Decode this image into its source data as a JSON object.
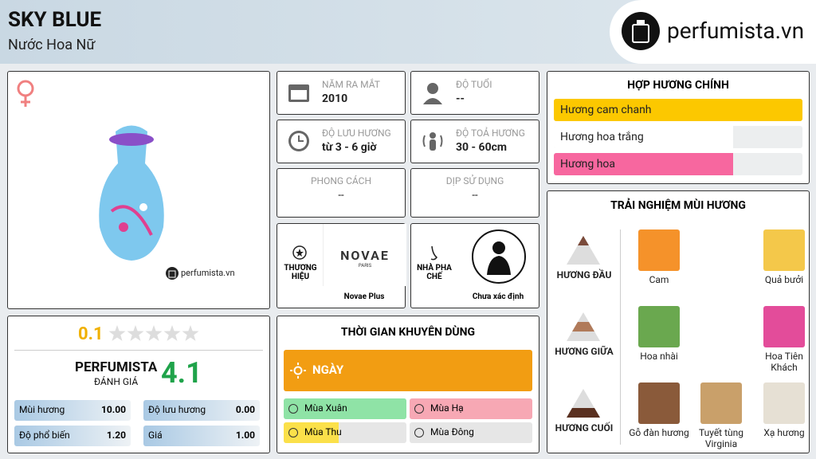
{
  "header": {
    "title": "SKY BLUE",
    "subtitle": "Nước Hoa Nữ",
    "brand": "perfumista.vn"
  },
  "product": {
    "watermark": "perfumista.vn"
  },
  "info": [
    {
      "label": "NĂM RA MẮT",
      "value": "2010"
    },
    {
      "label": "ĐỘ TUỔI",
      "value": "--"
    },
    {
      "label": "ĐỘ LƯU HƯƠNG",
      "value": "từ 3 - 6 giờ"
    },
    {
      "label": "ĐỘ TOẢ HƯƠNG",
      "value": "30 - 60cm"
    },
    {
      "label": "PHONG CÁCH",
      "value": "--"
    },
    {
      "label": "DỊP SỬ DỤNG",
      "value": "--"
    }
  ],
  "brand_box": {
    "label": "THƯƠNG HIỆU",
    "logo": "NOVAE",
    "logo_sub": "PARIS",
    "name": "Novae Plus"
  },
  "perfumer": {
    "label": "NHÀ PHA CHẾ",
    "name": "Chưa xác định"
  },
  "rating": {
    "user_score": "0.1",
    "label": "PERFUMISTA",
    "sublabel": "ĐÁNH GIÁ",
    "score": "4.1",
    "stats": [
      {
        "label": "Mùi hương",
        "value": "10.00"
      },
      {
        "label": "Độ lưu hương",
        "value": "0.00"
      },
      {
        "label": "Độ phổ biến",
        "value": "1.20"
      },
      {
        "label": "Giá",
        "value": "1.00"
      }
    ]
  },
  "usage": {
    "title": "THỜI GIAN KHUYÊN DÙNG",
    "day": {
      "name": "NGÀY",
      "strength": 100,
      "color": "#f29d12"
    },
    "seasons": [
      {
        "name": "Mùa Xuân",
        "strength": 100,
        "color": "#8fe3a6"
      },
      {
        "name": "Mùa Hạ",
        "strength": 100,
        "color": "#f7a8b4"
      },
      {
        "name": "Mùa Thu",
        "strength": 45,
        "color": "#fbe04a"
      },
      {
        "name": "Mùa Đông",
        "strength": 0,
        "color": "#a9d4f5"
      }
    ]
  },
  "accords": {
    "title": "HỢP HƯƠNG CHÍNH",
    "items": [
      {
        "name": "Hương cam chanh",
        "strength": 100,
        "color": "#fcc800"
      },
      {
        "name": "Hương hoa trắng",
        "strength": 72,
        "color": "#ffffff"
      },
      {
        "name": "Hương hoa",
        "strength": 72,
        "color": "#f7679f"
      }
    ]
  },
  "notes": {
    "title": "TRẢI NGHIỆM MÙI HƯƠNG",
    "tiers": [
      {
        "label": "HƯƠNG ĐẦU",
        "notes": [
          "Cam",
          "Quả bưởi"
        ]
      },
      {
        "label": "HƯƠNG GIỮA",
        "notes": [
          "Hoa nhài",
          "Hoa Tiên Khách"
        ]
      },
      {
        "label": "HƯƠNG CUỐI",
        "notes": [
          "Gỗ đàn hương",
          "Tuyết tùng Virginia",
          "Xạ hương"
        ]
      }
    ]
  }
}
